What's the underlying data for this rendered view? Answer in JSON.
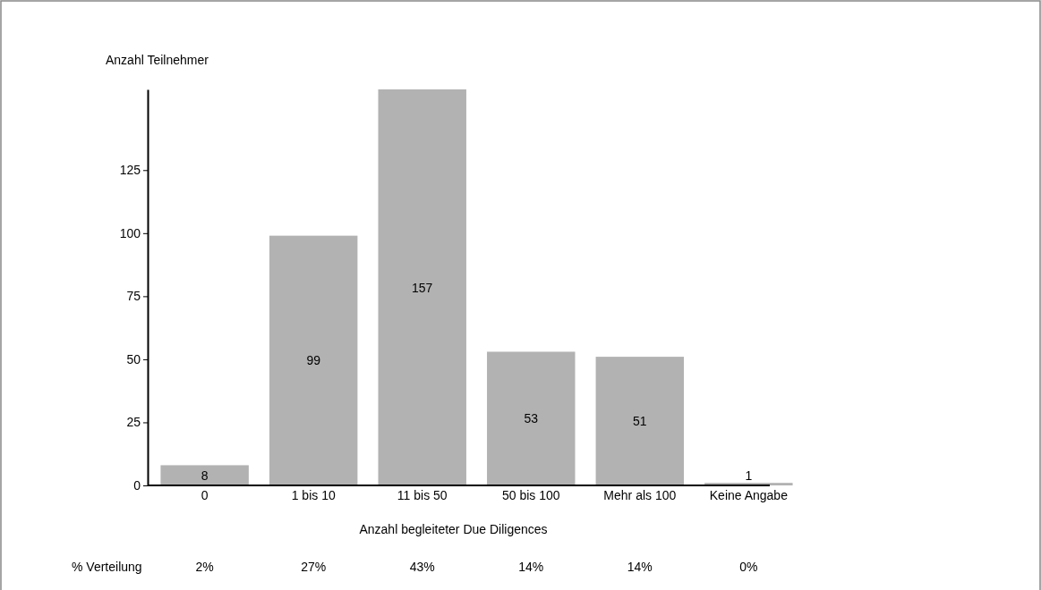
{
  "chart_data": {
    "type": "bar",
    "ylabel": "Anzahl Teilnehmer",
    "xlabel": "Anzahl begleiteter Due Diligences",
    "categories": [
      "0",
      "1 bis 10",
      "11 bis 50",
      "50 bis 100",
      "Mehr als 100",
      "Keine Angabe"
    ],
    "values": [
      8,
      99,
      157,
      53,
      51,
      1
    ],
    "color": "#b2b2b2",
    "ylim": [
      0,
      157
    ],
    "yticks": [
      0,
      25,
      50,
      75,
      100,
      125
    ],
    "grid": false,
    "data_labels": true,
    "annotations": [
      "% Verteilung",
      "2%",
      "27%",
      "43%",
      "14%",
      "14%",
      "0%"
    ]
  }
}
